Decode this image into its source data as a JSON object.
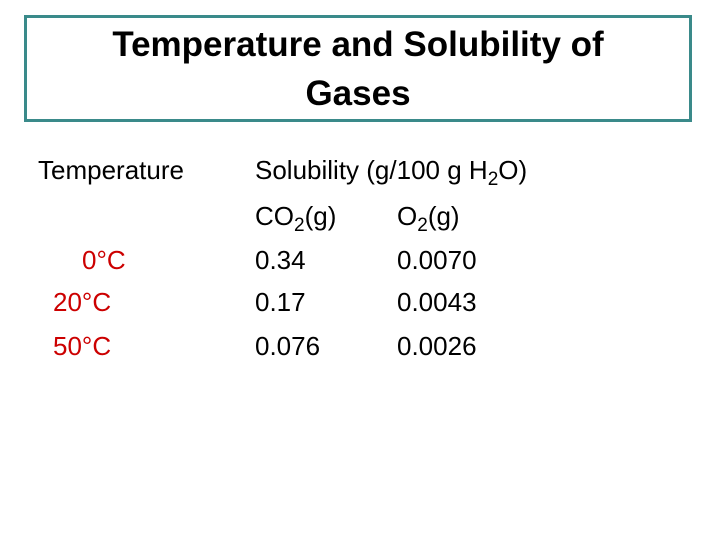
{
  "slide": {
    "title": "Temperature and Solubility of Gases",
    "temperature_header": "Temperature",
    "solubility_header": {
      "prefix": "Solubility (g/100 g H",
      "subscript": "2",
      "suffix": "O)"
    },
    "gases": [
      {
        "formula": "CO",
        "subscript": "2",
        "state": "(g)"
      },
      {
        "formula": "O",
        "subscript": "2",
        "state": "(g)"
      }
    ],
    "rows": [
      {
        "temperature": "0°C",
        "co2": "0.34",
        "o2": "0.0070"
      },
      {
        "temperature": "20°C",
        "co2": "0.17",
        "o2": "0.0043"
      },
      {
        "temperature": "50°C",
        "co2": "0.076",
        "o2": "0.0026"
      }
    ],
    "colors": {
      "border": "#3a8a8a",
      "temperature_values": "#cc0000"
    }
  }
}
